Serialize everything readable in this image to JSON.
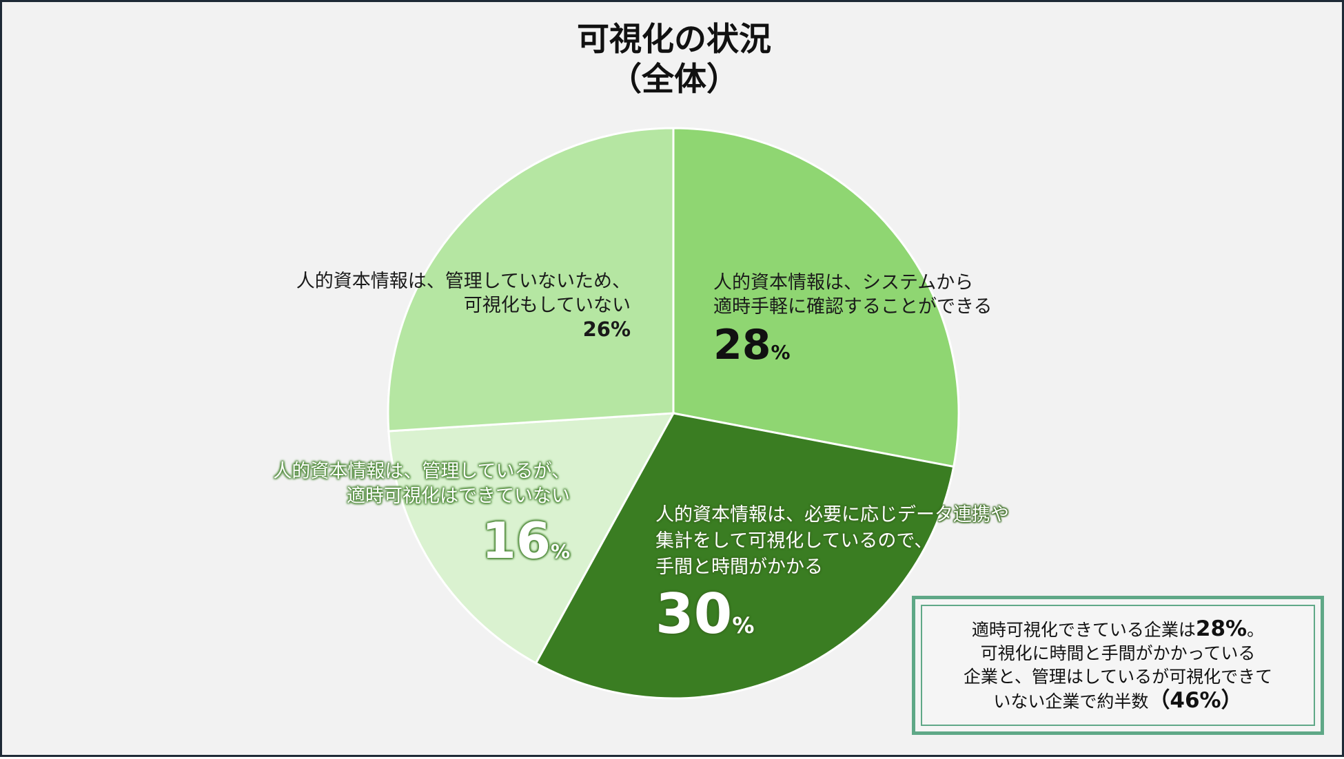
{
  "chart_data": {
    "type": "pie",
    "title_lines": [
      "可視化の状況",
      "（全体）"
    ],
    "slices": [
      {
        "label_lines": [
          "人的資本情報は、システムから",
          "適時手軽に確認することができる"
        ],
        "value": 28,
        "value_text": "28",
        "unit": "%",
        "color": "#8fd672"
      },
      {
        "label_lines": [
          "人的資本情報は、必要に応じデータ連携や",
          "集計をして可視化しているので、",
          "手間と時間がかかる"
        ],
        "value": 30,
        "value_text": "30",
        "unit": "%",
        "color": "#3a7d22"
      },
      {
        "label_lines": [
          "人的資本情報は、管理しているが、",
          "適時可視化はできていない"
        ],
        "value": 16,
        "value_text": "16",
        "unit": "%",
        "color": "#daf2d0"
      },
      {
        "label_lines": [
          "人的資本情報は、管理していないため、",
          "可視化もしていない"
        ],
        "value": 26,
        "value_text": "26",
        "unit": "%",
        "color": "#b5e6a2"
      }
    ],
    "slice_border_color": "#ffffff",
    "legend": "none"
  },
  "note": {
    "line1_pre": "適時可視化できている企業は",
    "line1_bold": "28%",
    "line1_post": "。",
    "line2": "可視化に時間と手間がかかっている",
    "line3": "企業と、管理はしているが可視化できて",
    "line4_pre": "いない企業で約半数",
    "line4_bold": "（46%）",
    "border_color": "#5fa887"
  }
}
